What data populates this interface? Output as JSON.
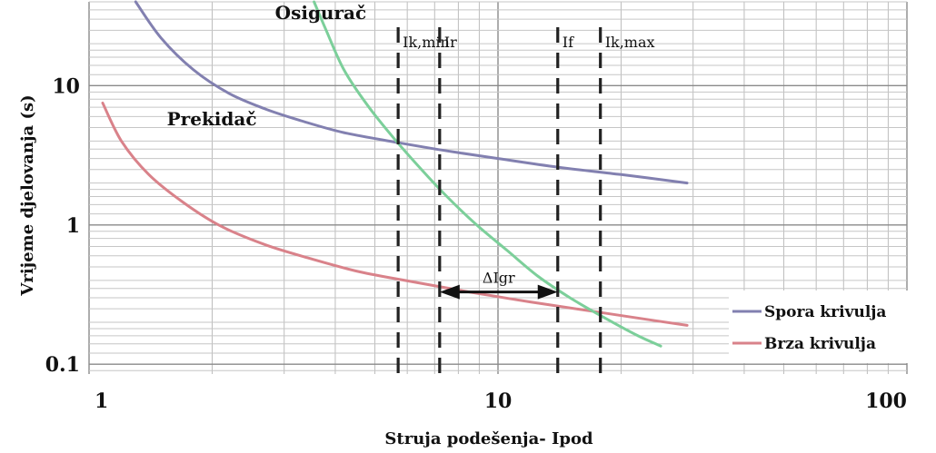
{
  "chart_data": {
    "type": "line",
    "title": "",
    "xlabel": "Struja podešenja- Ipod",
    "ylabel": "Vrijeme djelovanja (s)",
    "xscale": "log",
    "yscale": "log",
    "xlim": [
      1,
      100
    ],
    "ylim": [
      0.085,
      40
    ],
    "grid": true,
    "x_ticks": [
      {
        "value": 1,
        "label": "1"
      },
      {
        "value": 10,
        "label": "10"
      },
      {
        "value": 100,
        "label": "100"
      }
    ],
    "y_ticks": [
      {
        "value": 0.1,
        "label": "0.1"
      },
      {
        "value": 1,
        "label": "1"
      },
      {
        "value": 10,
        "label": "10"
      }
    ],
    "legend": {
      "placement": "bottom-right",
      "entries": [
        {
          "label": "Spora krivulja",
          "color": "#8280b0"
        },
        {
          "label": "Brza krivulja",
          "color": "#d9828a"
        }
      ]
    },
    "series": [
      {
        "name": "Spora krivulja",
        "color": "#8280b0",
        "x": [
          1.3,
          1.5,
          1.8,
          2.2,
          2.7,
          3.3,
          4.2,
          5.7,
          7.5,
          10,
          14,
          20,
          29
        ],
        "y": [
          40,
          22,
          13,
          8.8,
          6.8,
          5.6,
          4.6,
          3.9,
          3.4,
          3.0,
          2.6,
          2.3,
          2.0
        ]
      },
      {
        "name": "Brza krivulja",
        "color": "#d9828a",
        "x": [
          1.08,
          1.2,
          1.4,
          1.7,
          2.1,
          2.7,
          3.5,
          4.6,
          6.2,
          8.5,
          12,
          17,
          23,
          29
        ],
        "y": [
          7.5,
          4.0,
          2.3,
          1.45,
          0.98,
          0.72,
          0.57,
          0.46,
          0.39,
          0.33,
          0.28,
          0.24,
          0.21,
          0.19
        ]
      },
      {
        "name": "",
        "color": "#7ccf9a",
        "x": [
          3.55,
          3.8,
          4.2,
          4.8,
          5.6,
          6.5,
          7.5,
          8.8,
          10.5,
          12.5,
          15,
          18.5,
          22,
          25
        ],
        "y": [
          40,
          25,
          13,
          7.2,
          4.1,
          2.5,
          1.6,
          1.02,
          0.66,
          0.43,
          0.3,
          0.21,
          0.16,
          0.135
        ]
      }
    ],
    "vlines": [
      {
        "x": 5.7,
        "label": "Ik,min"
      },
      {
        "x": 7.2,
        "label": "Ir"
      },
      {
        "x": 14,
        "label": "If"
      },
      {
        "x": 17.8,
        "label": "Ik,max"
      }
    ],
    "arrow": {
      "x_from": 7.2,
      "x_to": 14,
      "y": 0.33,
      "label": "ΔIgr"
    },
    "annotations": [
      {
        "text": "Osigurač",
        "x": 2.85,
        "y": 30
      },
      {
        "text": "Prekidač",
        "x": 1.55,
        "y": 5.2
      }
    ]
  }
}
